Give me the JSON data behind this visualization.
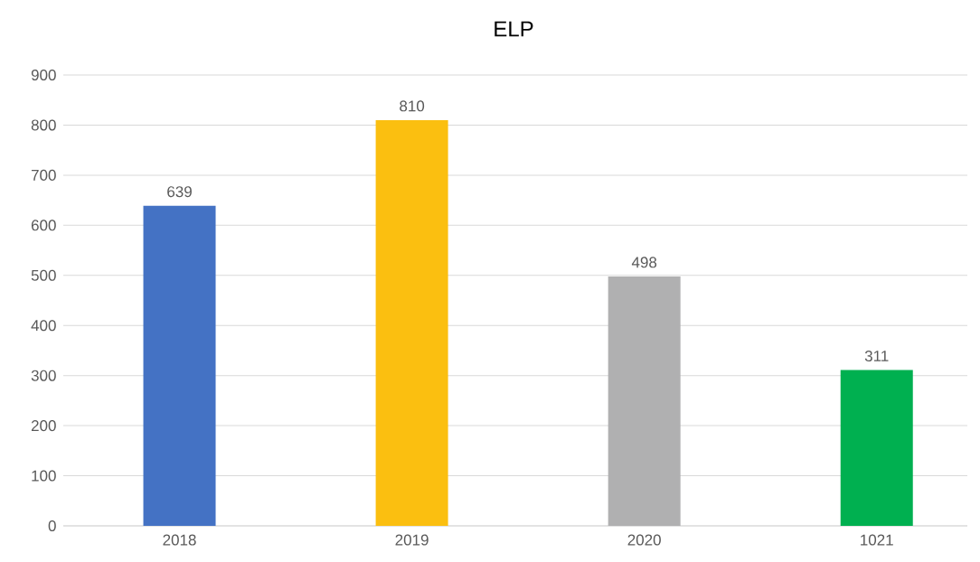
{
  "chart_data": {
    "type": "bar",
    "title": "ELP",
    "categories": [
      "2018",
      "2019",
      "2020",
      "1021"
    ],
    "values": [
      639,
      810,
      498,
      311
    ],
    "colors": [
      "#4472c4",
      "#fbbf10",
      "#b0b0b1",
      "#00b050"
    ],
    "ylim": [
      0,
      900
    ],
    "yticks": [
      0,
      100,
      200,
      300,
      400,
      500,
      600,
      700,
      800,
      900
    ],
    "grid": "y",
    "data_labels": true
  }
}
